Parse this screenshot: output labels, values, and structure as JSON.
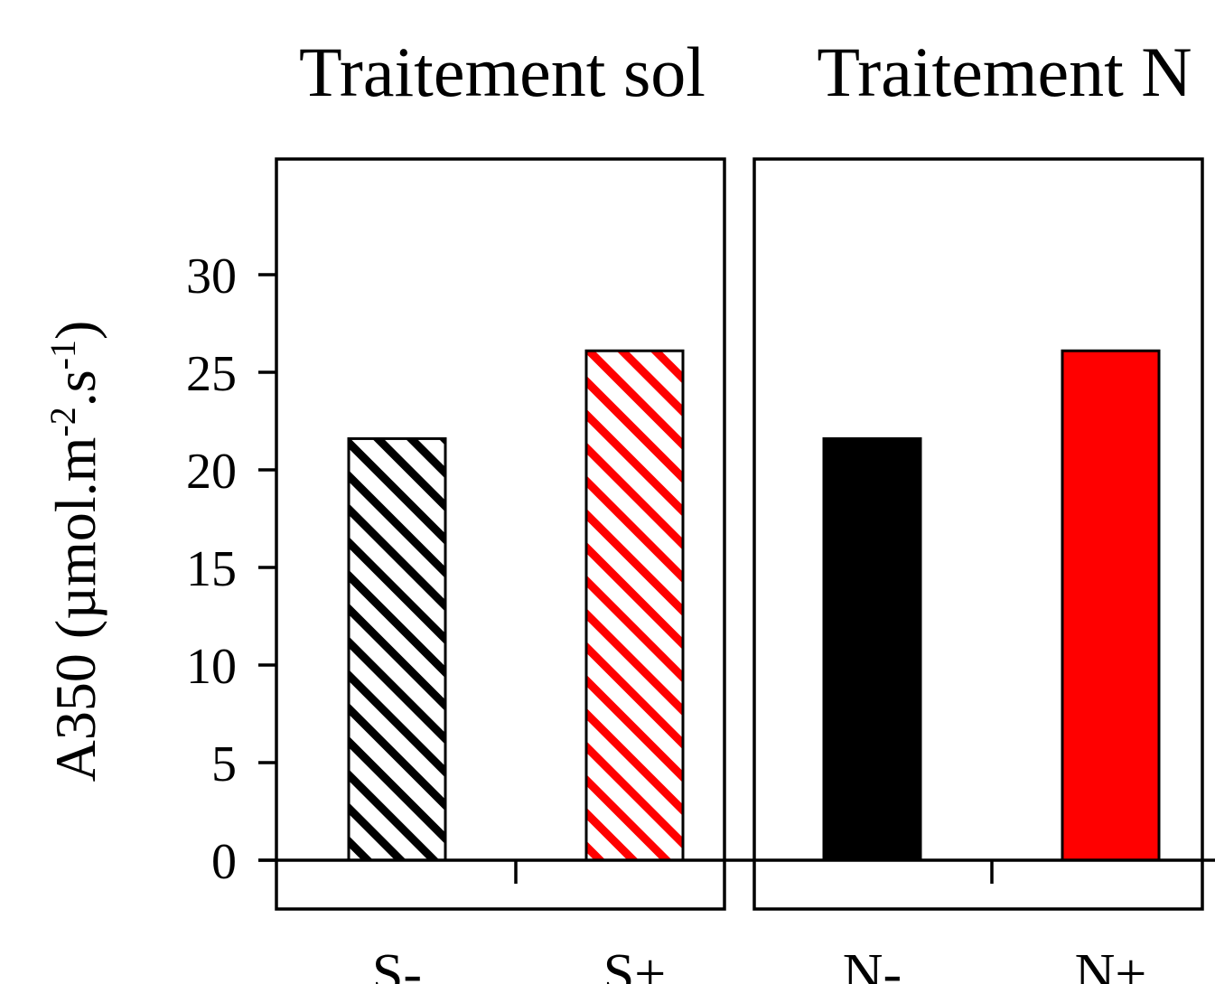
{
  "chart_data": {
    "type": "bar",
    "ylabel": "A350 (µmol.m",
    "ylabel_sup1": "-2",
    "ylabel_mid": ".s",
    "ylabel_sup2": "-1",
    "ylabel_end": ")",
    "ylim": [
      -3,
      35
    ],
    "yticks": [
      "0",
      "5",
      "10",
      "15",
      "20",
      "25",
      "30"
    ],
    "ytick_values": [
      0,
      5,
      10,
      15,
      20,
      25,
      30
    ],
    "grid": false,
    "panels": [
      {
        "title": "Traitement sol",
        "categories": [
          "S-",
          "S+"
        ],
        "values": [
          21.6,
          26.1
        ],
        "colors": [
          "#000000",
          "#ff0000"
        ],
        "fill": "hatched"
      },
      {
        "title": "Traitement N",
        "categories": [
          "N-",
          "N+"
        ],
        "values": [
          21.6,
          26.1
        ],
        "colors": [
          "#000000",
          "#ff0000"
        ],
        "fill": "solid"
      }
    ]
  }
}
